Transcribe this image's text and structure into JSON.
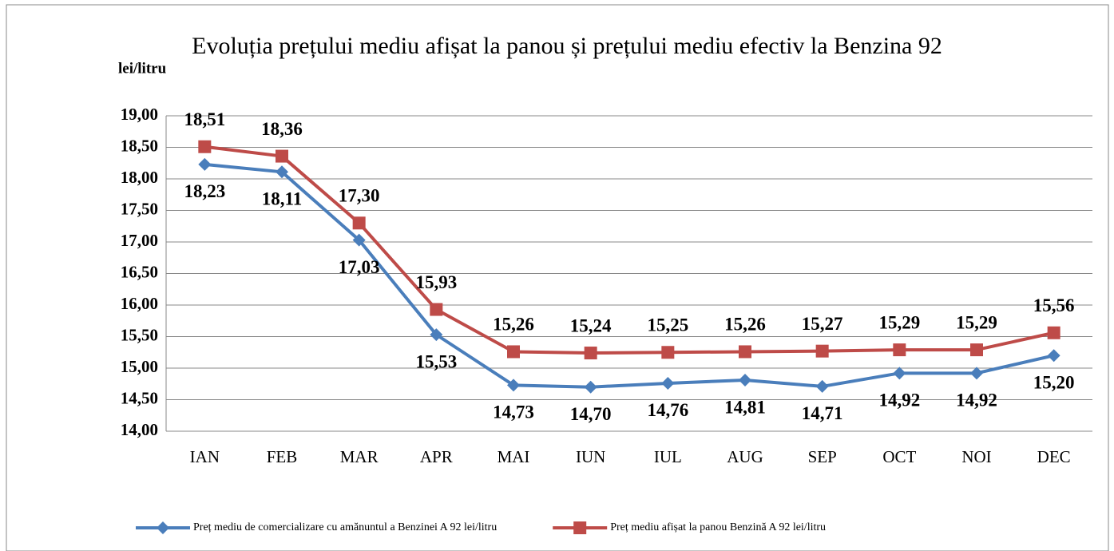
{
  "chart_data": {
    "type": "line",
    "title": "Evoluția prețului mediu afișat la panou și prețului mediu efectiv la Benzina 92",
    "y_label": "lei/litru",
    "categories": [
      "IAN",
      "FEB",
      "MAR",
      "APR",
      "MAI",
      "IUN",
      "IUL",
      "AUG",
      "SEP",
      "OCT",
      "NOI",
      "DEC"
    ],
    "series": [
      {
        "name": "Preț mediu de comercializare cu amănuntul a Benzinei A 92 lei/litru",
        "color": "#4a7ebb",
        "marker": "diamond",
        "values": [
          18.23,
          18.11,
          17.03,
          15.53,
          14.73,
          14.7,
          14.76,
          14.81,
          14.71,
          14.92,
          14.92,
          15.2
        ],
        "value_labels": [
          "18,23",
          "18,11",
          "17,03",
          "15,53",
          "14,73",
          "14,70",
          "14,76",
          "14,81",
          "14,71",
          "14,92",
          "14,92",
          "15,20"
        ]
      },
      {
        "name": "Preț  mediu afișat la panou Benzină A 92 lei/litru",
        "color": "#be4b48",
        "marker": "square",
        "values": [
          18.51,
          18.36,
          17.3,
          15.93,
          15.26,
          15.24,
          15.25,
          15.26,
          15.27,
          15.29,
          15.29,
          15.56
        ],
        "value_labels": [
          "18,51",
          "18,36",
          "17,30",
          "15,93",
          "15,26",
          "15,24",
          "15,25",
          "15,26",
          "15,27",
          "15,29",
          "15,29",
          "15,56"
        ]
      }
    ],
    "ylim": [
      14,
      19
    ],
    "yticks": [
      {
        "value": 14,
        "label": "14,00"
      },
      {
        "value": 14.5,
        "label": "14,50"
      },
      {
        "value": 15,
        "label": "15,00"
      },
      {
        "value": 15.5,
        "label": "15,50"
      },
      {
        "value": 16,
        "label": "16,00"
      },
      {
        "value": 16.5,
        "label": "16,50"
      },
      {
        "value": 17,
        "label": "17,00"
      },
      {
        "value": 17.5,
        "label": "17,50"
      },
      {
        "value": 18,
        "label": "18,00"
      },
      {
        "value": 18.5,
        "label": "18,50"
      },
      {
        "value": 19,
        "label": "19,00"
      }
    ],
    "grid": true,
    "legend": "bottom"
  }
}
